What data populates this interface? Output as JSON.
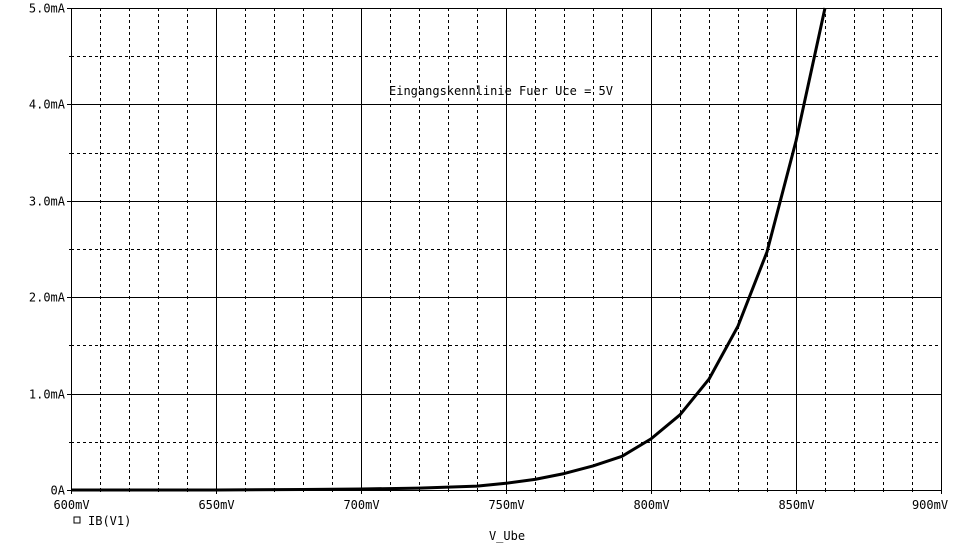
{
  "chart_data": {
    "type": "line",
    "title": "",
    "annotation": "Eingangskennlinie Fuer Uce = 5V",
    "xlabel": "V_Ube",
    "ylabel": "",
    "xlim": [
      600,
      900
    ],
    "ylim": [
      0,
      5.0
    ],
    "x_unit": "mV",
    "y_unit": "mA",
    "x_ticks": [
      600,
      650,
      700,
      750,
      800,
      850,
      900
    ],
    "x_tick_labels": [
      "600mV",
      "650mV",
      "700mV",
      "750mV",
      "800mV",
      "850mV",
      "900mV"
    ],
    "y_ticks": [
      0,
      1.0,
      2.0,
      3.0,
      4.0,
      5.0
    ],
    "y_tick_labels": [
      "0A",
      "1.0mA",
      "2.0mA",
      "3.0mA",
      "4.0mA",
      "5.0mA"
    ],
    "x_minor_step": 10,
    "y_minor_step": 0.5,
    "grid": true,
    "legend_position": "bottom-left",
    "series": [
      {
        "name": "IB(V1)",
        "color": "#000000",
        "x": [
          600,
          650,
          680,
          700,
          720,
          730,
          740,
          750,
          760,
          770,
          780,
          790,
          800,
          810,
          820,
          830,
          840,
          850,
          860
        ],
        "y": [
          0.0,
          0.0,
          0.005,
          0.01,
          0.02,
          0.03,
          0.04,
          0.07,
          0.11,
          0.17,
          0.25,
          0.35,
          0.53,
          0.78,
          1.15,
          1.7,
          2.47,
          3.62,
          5.0
        ]
      }
    ]
  }
}
